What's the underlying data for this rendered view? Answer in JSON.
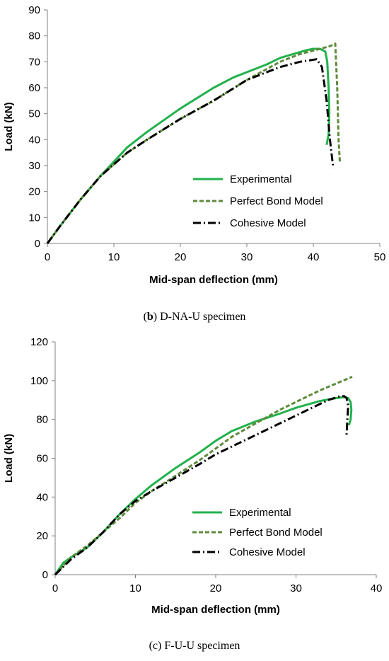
{
  "chart_data": [
    {
      "type": "line",
      "caption_letter": "b",
      "caption_text": " D-NA-U specimen",
      "xlabel": "Mid-span deflection (mm)",
      "ylabel": "Load (kN)",
      "xlim": [
        0,
        50
      ],
      "ylim": [
        0,
        90
      ],
      "xticks": [
        0,
        10,
        20,
        30,
        40,
        50
      ],
      "yticks": [
        0,
        10,
        20,
        30,
        40,
        50,
        60,
        70,
        80,
        90
      ],
      "grid": false,
      "legend_position": "bottom-right",
      "series": [
        {
          "name": "Experimental",
          "color": "#22b14c",
          "style": "solid",
          "x": [
            0,
            2,
            5,
            8,
            12,
            15,
            20,
            25,
            28,
            30,
            33,
            35,
            37,
            39,
            40,
            41,
            41.8,
            42.1,
            42.3,
            42.4,
            42.3,
            42.0
          ],
          "y": [
            0,
            7,
            17,
            26,
            37,
            43,
            52,
            60,
            64,
            66,
            69,
            71.5,
            73,
            74.5,
            75,
            75,
            74,
            70,
            60,
            50,
            42,
            38
          ]
        },
        {
          "name": "Perfect Bond Model",
          "color": "#5e8b3a",
          "style": "dashed",
          "x": [
            0,
            2,
            5,
            8,
            12,
            15,
            20,
            25,
            30,
            35,
            38,
            41,
            42.5,
            43.3,
            43.6,
            43.8,
            44.0
          ],
          "y": [
            0,
            7,
            17,
            26,
            35,
            40,
            48,
            55,
            63,
            70,
            73,
            75,
            76,
            77,
            60,
            40,
            31
          ]
        },
        {
          "name": "Cohesive Model",
          "color": "#000000",
          "style": "dashdot",
          "x": [
            0,
            2,
            5,
            8,
            12,
            15,
            20,
            25,
            30,
            35,
            38,
            40.5,
            41.3,
            42.0,
            42.5,
            43.0
          ],
          "y": [
            0,
            7,
            17,
            26,
            35,
            40,
            48,
            55,
            63,
            68,
            70,
            71,
            68,
            55,
            40,
            29
          ]
        }
      ]
    },
    {
      "type": "line",
      "caption_letter": "",
      "caption_text": "(c) F-U-U specimen",
      "xlabel": "Mid-span deflection (mm)",
      "ylabel": "Load (kN)",
      "xlim": [
        0,
        40
      ],
      "ylim": [
        0,
        120
      ],
      "xticks": [
        0,
        10,
        20,
        30,
        40
      ],
      "yticks": [
        0,
        20,
        40,
        60,
        80,
        100,
        120
      ],
      "grid": false,
      "legend_position": "bottom-right",
      "series": [
        {
          "name": "Experimental",
          "color": "#22b14c",
          "style": "solid",
          "x": [
            0,
            1,
            2,
            4,
            6,
            8,
            10,
            12,
            15,
            18,
            20,
            22,
            25,
            28,
            30,
            33,
            35,
            36,
            36.5,
            36.8,
            36.9,
            36.8,
            36.6
          ],
          "y": [
            0,
            6,
            9,
            14,
            22,
            31,
            39,
            46,
            55,
            63,
            69,
            74,
            79,
            83,
            86,
            89.5,
            91,
            91.5,
            91,
            89,
            85,
            80,
            77
          ]
        },
        {
          "name": "Perfect Bond Model",
          "color": "#5e8b3a",
          "style": "dashed",
          "x": [
            0,
            2,
            4,
            6,
            8,
            10,
            12,
            15,
            18,
            20,
            22,
            25,
            28,
            30,
            33,
            35,
            37
          ],
          "y": [
            0,
            9,
            15,
            22,
            29,
            37,
            43,
            51,
            59,
            65,
            71,
            78,
            85,
            89,
            95,
            98.5,
            102
          ]
        },
        {
          "name": "Cohesive Model",
          "color": "#000000",
          "style": "dashdot",
          "x": [
            0,
            2,
            4,
            6,
            8,
            10,
            12,
            15,
            18,
            20,
            22,
            25,
            28,
            30,
            32,
            34,
            35.5,
            36.0,
            36.3,
            36.5,
            36.4,
            36.3
          ],
          "y": [
            0,
            8,
            14,
            22,
            31,
            38,
            43,
            50,
            57,
            62,
            66,
            72,
            78,
            82,
            86,
            90,
            92,
            92,
            91,
            87,
            80,
            72
          ]
        }
      ]
    }
  ]
}
